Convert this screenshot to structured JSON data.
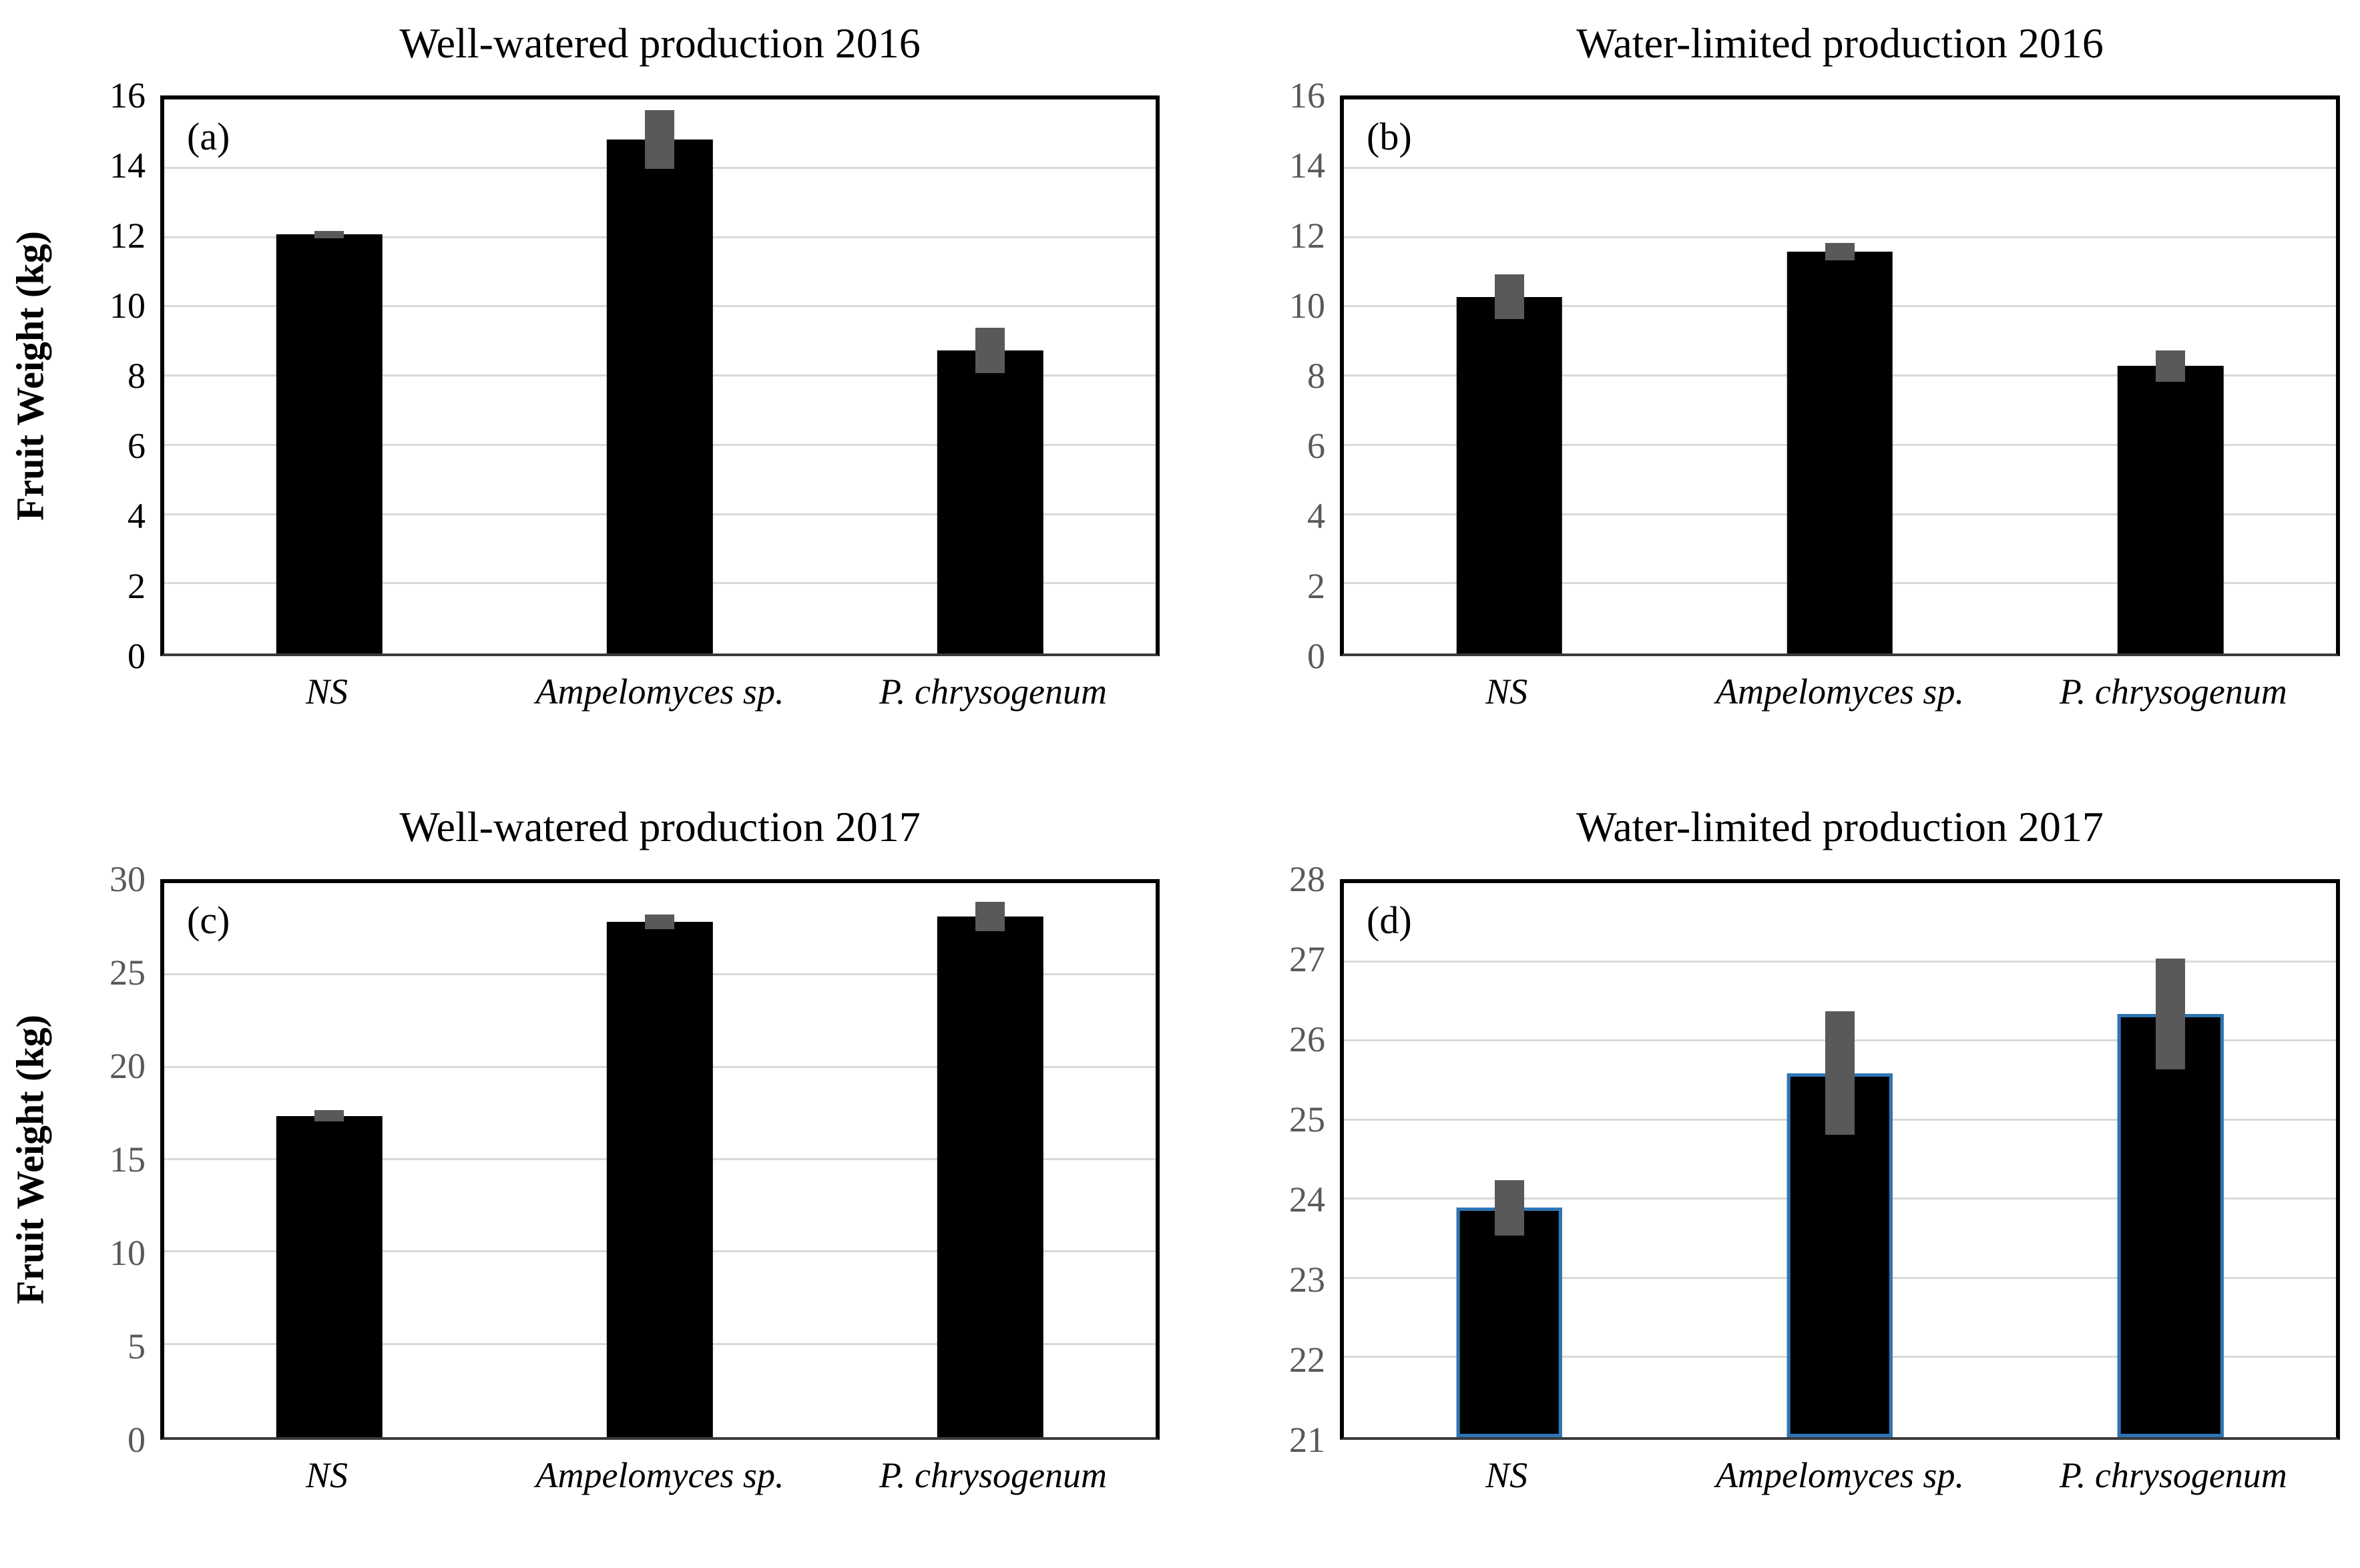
{
  "style": {
    "background": "#ffffff",
    "grid_color": "#d9d9d9",
    "error_color": "#595959",
    "frame_color": "#000000",
    "title_color": "#000000",
    "xlabel_color": "#000000"
  },
  "chart_data": [
    {
      "type": "bar",
      "panel": "(a)",
      "title": "Well-watered production 2016",
      "ylabel": "Fruit Weight (kg)",
      "categories": [
        "NS",
        "Ampelomyces sp.",
        "P. chrysogenum"
      ],
      "values": [
        12.1,
        14.85,
        8.75
      ],
      "errors": [
        0.1,
        0.85,
        0.65
      ],
      "ylim": [
        0,
        16
      ],
      "yticks": [
        0,
        2,
        4,
        6,
        8,
        10,
        12,
        14,
        16
      ],
      "tick_color": "#000000",
      "bar_fill": "#000000",
      "bar_border": "#000000",
      "grid": true,
      "legend": "none"
    },
    {
      "type": "bar",
      "panel": "(b)",
      "title": "Water-limited production 2016",
      "ylabel": "",
      "categories": [
        "NS",
        "Ampelomyces sp.",
        "P. chrysogenum"
      ],
      "values": [
        10.3,
        11.6,
        8.3
      ],
      "errors": [
        0.65,
        0.25,
        0.45
      ],
      "ylim": [
        0,
        16
      ],
      "yticks": [
        0,
        2,
        4,
        6,
        8,
        10,
        12,
        14,
        16
      ],
      "tick_color": "#595959",
      "bar_fill": "#000000",
      "bar_border": "#000000",
      "grid": true,
      "legend": "none"
    },
    {
      "type": "bar",
      "panel": "(c)",
      "title": "Well-watered production 2017",
      "ylabel": "Fruit Weight (kg)",
      "categories": [
        "NS",
        "Ampelomyces sp.",
        "P. chrysogenum"
      ],
      "values": [
        17.4,
        27.9,
        28.2
      ],
      "errors": [
        0.3,
        0.4,
        0.8
      ],
      "ylim": [
        0,
        30
      ],
      "yticks": [
        0,
        5,
        10,
        15,
        20,
        25,
        30
      ],
      "tick_color": "#595959",
      "bar_fill": "#000000",
      "bar_border": "#000000",
      "grid": true,
      "legend": "none"
    },
    {
      "type": "bar",
      "panel": "(d)",
      "title": "Water-limited production 2017",
      "ylabel": "",
      "categories": [
        "NS",
        "Ampelomyces sp.",
        "P. chrysogenum"
      ],
      "values": [
        23.9,
        25.6,
        26.35
      ],
      "errors": [
        0.35,
        0.78,
        0.7
      ],
      "ylim": [
        21,
        28
      ],
      "yticks": [
        21,
        22,
        23,
        24,
        25,
        26,
        27,
        28
      ],
      "tick_color": "#595959",
      "bar_fill": "#000000",
      "bar_border": "#2e75b6",
      "grid": true,
      "legend": "none"
    }
  ]
}
